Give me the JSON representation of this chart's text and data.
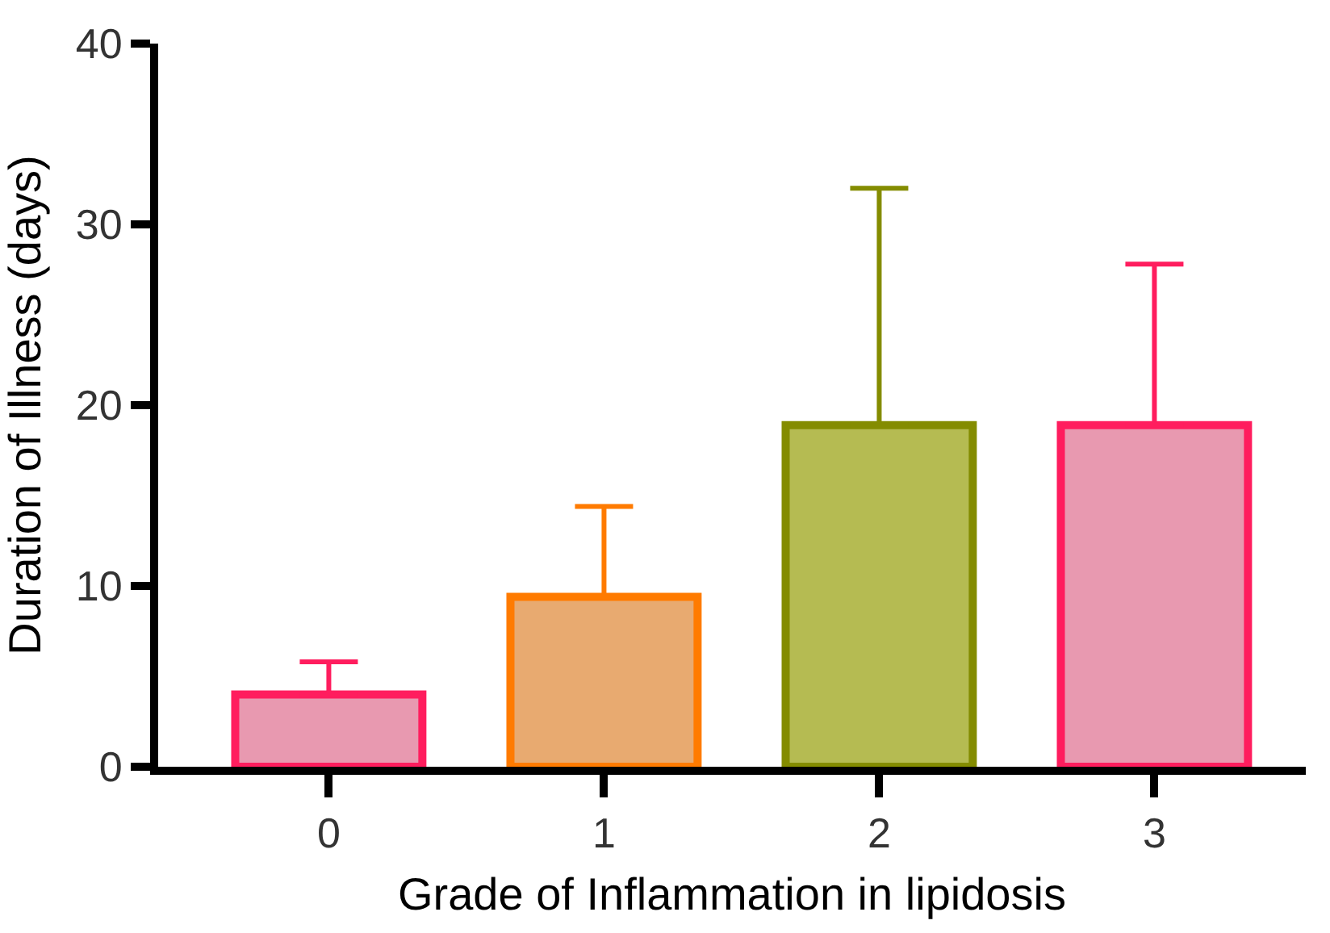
{
  "chart_data": {
    "type": "bar",
    "xlabel": "Grade of Inflammation in lipidosis",
    "ylabel": "Duration of Illness (days)",
    "categories": [
      "0",
      "1",
      "2",
      "3"
    ],
    "values": [
      4.0,
      9.4,
      18.9,
      18.9
    ],
    "errors": [
      [
        4.0,
        5.8
      ],
      [
        9.4,
        14.4
      ],
      [
        18.9,
        32.0
      ],
      [
        18.9,
        27.8
      ]
    ],
    "colors": [
      "#e899b0",
      "#e8aa70",
      "#b5bb52",
      "#e899b0"
    ],
    "ylim": [
      0,
      40
    ],
    "yticks": [
      0,
      10,
      20,
      30,
      40
    ]
  }
}
